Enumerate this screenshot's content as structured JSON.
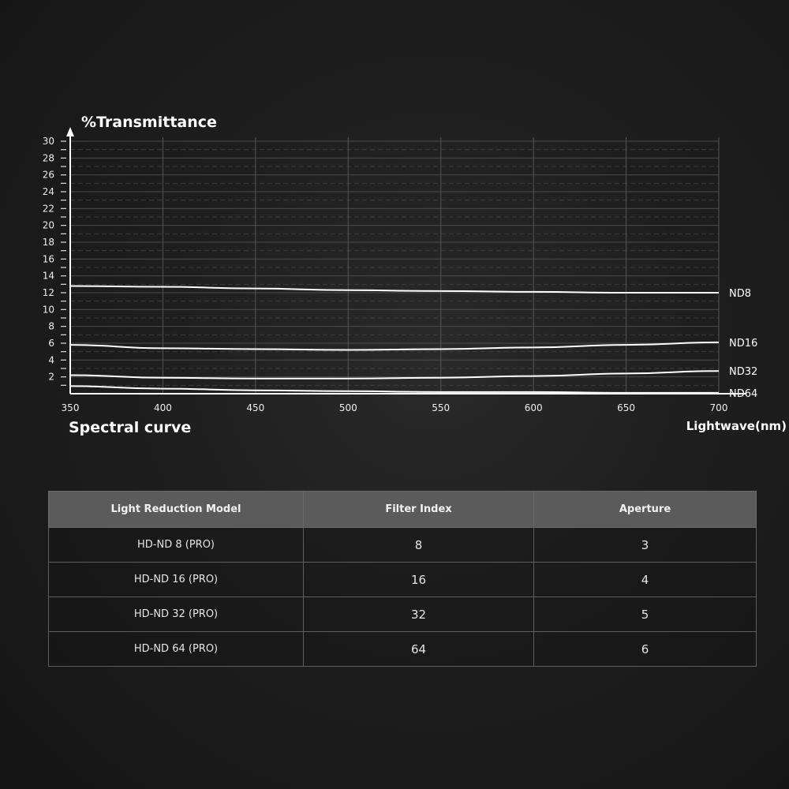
{
  "chart_data": {
    "type": "line",
    "title": "Spectral curve",
    "ylabel": "%Transmittance",
    "xlabel": "Lightwave(nm)",
    "xlim": [
      350,
      700
    ],
    "ylim": [
      0,
      30
    ],
    "xticks": [
      350,
      400,
      450,
      500,
      550,
      600,
      650,
      700
    ],
    "yticks": [
      2,
      4,
      6,
      8,
      10,
      12,
      14,
      16,
      18,
      20,
      22,
      24,
      26,
      28,
      30
    ],
    "grid": true,
    "line_color": "#ffffff",
    "x": [
      350,
      400,
      450,
      500,
      550,
      600,
      650,
      700
    ],
    "series": [
      {
        "name": "ND8",
        "values": [
          12.8,
          12.7,
          12.5,
          12.3,
          12.2,
          12.1,
          12.0,
          12.0
        ]
      },
      {
        "name": "ND16",
        "values": [
          5.8,
          5.4,
          5.3,
          5.2,
          5.3,
          5.5,
          5.8,
          6.1
        ]
      },
      {
        "name": "ND32",
        "values": [
          2.2,
          1.9,
          1.8,
          1.8,
          1.9,
          2.1,
          2.4,
          2.7
        ]
      },
      {
        "name": "ND64",
        "values": [
          0.9,
          0.6,
          0.4,
          0.3,
          0.2,
          0.2,
          0.1,
          0.1
        ]
      }
    ]
  },
  "table": {
    "headers": [
      "Light Reduction Model",
      "Filter Index",
      "Aperture"
    ],
    "rows": [
      [
        "HD-ND 8 (PRO)",
        "8",
        "3"
      ],
      [
        "HD-ND 16 (PRO)",
        "16",
        "4"
      ],
      [
        "HD-ND 32 (PRO)",
        "32",
        "5"
      ],
      [
        "HD-ND 64 (PRO)",
        "64",
        "6"
      ]
    ]
  }
}
